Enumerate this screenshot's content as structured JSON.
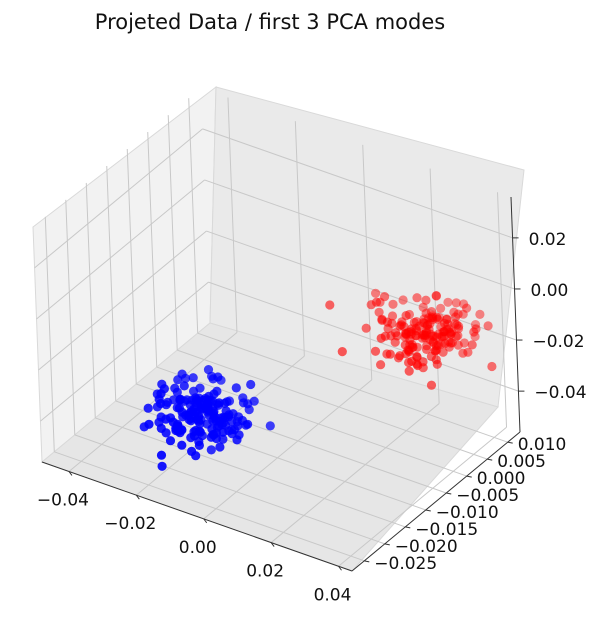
{
  "chart_data": {
    "type": "scatter",
    "projection": "3d",
    "title": "Projeted Data / first 3 PCA modes",
    "xlabel": "",
    "ylabel": "",
    "zlabel": "",
    "xlim": [
      -0.048,
      0.044
    ],
    "ylim": [
      -0.028,
      0.013
    ],
    "zlim": [
      -0.056,
      0.036
    ],
    "xticks": [
      "−0.04",
      "−0.02",
      "0.00",
      "0.02",
      "0.04"
    ],
    "yticks": [
      "−0.025",
      "−0.020",
      "−0.015",
      "−0.010",
      "−0.005",
      "0.000",
      "0.005",
      "0.010"
    ],
    "zticks": [
      "−0.04",
      "−0.02",
      "0.00",
      "0.02"
    ],
    "grid": true,
    "series": [
      {
        "color": "#0000ff",
        "center": [
          -0.012,
          -0.018,
          -0.034
        ],
        "spread": [
          0.0065,
          0.0032,
          0.0045
        ],
        "count": 170
      },
      {
        "color": "#ff0000",
        "center": [
          0.028,
          0.004,
          -0.012
        ],
        "spread": [
          0.0065,
          0.0032,
          0.0045
        ],
        "count": 170
      }
    ]
  }
}
